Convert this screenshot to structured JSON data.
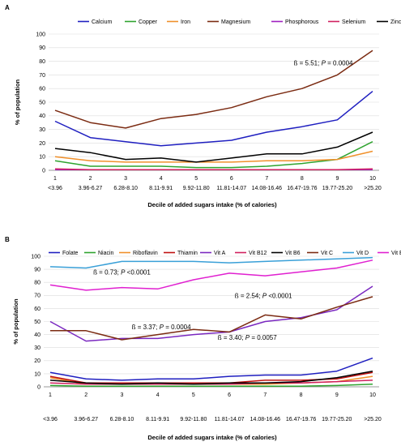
{
  "chart_data": [
    {
      "type": "line",
      "panel": "A",
      "ylabel": "% of population",
      "xlabel": "Decile of added sugars intake (% of calories)",
      "ylim": [
        0,
        100
      ],
      "yticks": [
        0,
        10,
        20,
        30,
        40,
        50,
        60,
        70,
        80,
        90,
        100
      ],
      "grid": true,
      "legend": "top",
      "categories": [
        "1",
        "2",
        "3",
        "4",
        "5",
        "6",
        "7",
        "8",
        "9",
        "10"
      ],
      "ranges": [
        "<3.96",
        "3.96-6.27",
        "6.28-8.10",
        "8.11-9.91",
        "9.92-11.80",
        "11.81-14.07",
        "14.08-16.46",
        "16.47-19.76",
        "19.77-25.20",
        ">25.20"
      ],
      "series": [
        {
          "name": "Calcium",
          "color": "#1f1fc0",
          "values": [
            36,
            24,
            21,
            18,
            20,
            22,
            28,
            32,
            37,
            58
          ]
        },
        {
          "name": "Copper",
          "color": "#2fa32f",
          "values": [
            7,
            3,
            3,
            3,
            2,
            2,
            3,
            5,
            8,
            21
          ]
        },
        {
          "name": "Iron",
          "color": "#f0902a",
          "values": [
            10,
            7,
            6,
            6,
            6,
            6,
            7,
            7,
            8,
            14
          ]
        },
        {
          "name": "Magnesium",
          "color": "#7b2b12",
          "values": [
            44,
            35,
            31,
            38,
            41,
            46,
            54,
            60,
            70,
            88
          ]
        },
        {
          "name": "Phosphorous",
          "color": "#a020c0",
          "values": [
            0.5,
            0.5,
            0.5,
            0.5,
            0.5,
            0.5,
            0.5,
            0.5,
            0.5,
            0.5
          ]
        },
        {
          "name": "Selenium",
          "color": "#d0205f",
          "values": [
            1,
            0.5,
            0.5,
            0.5,
            0.5,
            0.5,
            0.5,
            0.5,
            0.5,
            1
          ]
        },
        {
          "name": "Zinc",
          "color": "#000000",
          "values": [
            16,
            13,
            8,
            9,
            6,
            9,
            12,
            12,
            17,
            28
          ]
        }
      ],
      "annotations": [
        {
          "beta": "ß = 5.51; ",
          "p_label": "P",
          "p_value": " = 0.0004",
          "x": 8.6,
          "y": 77
        }
      ]
    },
    {
      "type": "line",
      "panel": "B",
      "ylabel": "% of population",
      "xlabel": "Decile of added sugars intake (% of calories)",
      "ylim": [
        0,
        100
      ],
      "yticks": [
        0,
        10,
        20,
        30,
        40,
        50,
        60,
        70,
        80,
        90,
        100
      ],
      "grid": true,
      "legend": "top",
      "categories": [
        "1",
        "2",
        "3",
        "4",
        "5",
        "6",
        "7",
        "8",
        "9",
        "10"
      ],
      "ranges": [
        "<3.96",
        "3.96-6.27",
        "6.28-8.10",
        "8.11-9.91",
        "9.92-11.80",
        "11.81-14.07",
        "14.08-16.46",
        "16.47-19.76",
        "19.77-25.20",
        ">25.20"
      ],
      "series": [
        {
          "name": "Folate",
          "color": "#1f1fc0",
          "values": [
            11,
            6,
            5,
            6,
            6,
            8,
            9,
            9,
            12,
            22
          ]
        },
        {
          "name": "Niacin",
          "color": "#2fa32f",
          "values": [
            1,
            0.5,
            0.5,
            0.5,
            0.5,
            0.5,
            0.5,
            0.5,
            1,
            2
          ]
        },
        {
          "name": "Riboflavin",
          "color": "#f0902a",
          "values": [
            7,
            2,
            2,
            2,
            2,
            2,
            2,
            3,
            4,
            8
          ]
        },
        {
          "name": "Thiamin",
          "color": "#c01010",
          "values": [
            8,
            3,
            3,
            3,
            3,
            3,
            5,
            5,
            6,
            11
          ]
        },
        {
          "name": "Vit A",
          "color": "#7a28c0",
          "values": [
            50,
            35,
            37,
            37,
            40,
            42,
            50,
            53,
            59,
            77
          ]
        },
        {
          "name": "Vit B12",
          "color": "#d0205f",
          "values": [
            3,
            2,
            2,
            2,
            2,
            2,
            3,
            3,
            4,
            5
          ]
        },
        {
          "name": "Vit B6",
          "color": "#000000",
          "values": [
            5,
            3,
            2,
            3,
            2,
            3,
            3,
            4,
            7,
            12
          ]
        },
        {
          "name": "Vit C",
          "color": "#7b2b12",
          "values": [
            43,
            43,
            36,
            40,
            44,
            42,
            55,
            52,
            61,
            69
          ]
        },
        {
          "name": "Vit D",
          "color": "#3aa0d8",
          "values": [
            92,
            91,
            96,
            96,
            96,
            95,
            96,
            97,
            98,
            99
          ]
        },
        {
          "name": "Vit E",
          "color": "#e020d0",
          "values": [
            78,
            74,
            76,
            75,
            82,
            87,
            85,
            88,
            91,
            97
          ]
        }
      ],
      "annotations": [
        {
          "beta": "ß = 0.73; ",
          "p_label": "P",
          "p_value": " <0.0001",
          "x": 3.0,
          "y": 86
        },
        {
          "beta": "ß = 2.54; ",
          "p_label": "P",
          "p_value": " <0.0001",
          "x": 6.95,
          "y": 68
        },
        {
          "beta": "ß = 3.37; ",
          "p_label": "P",
          "p_value": " = 0.0004",
          "x": 4.1,
          "y": 44
        },
        {
          "beta": "ß = 3.40; ",
          "p_label": "P",
          "p_value": " = 0.0057",
          "x": 6.5,
          "y": 36
        }
      ]
    }
  ]
}
